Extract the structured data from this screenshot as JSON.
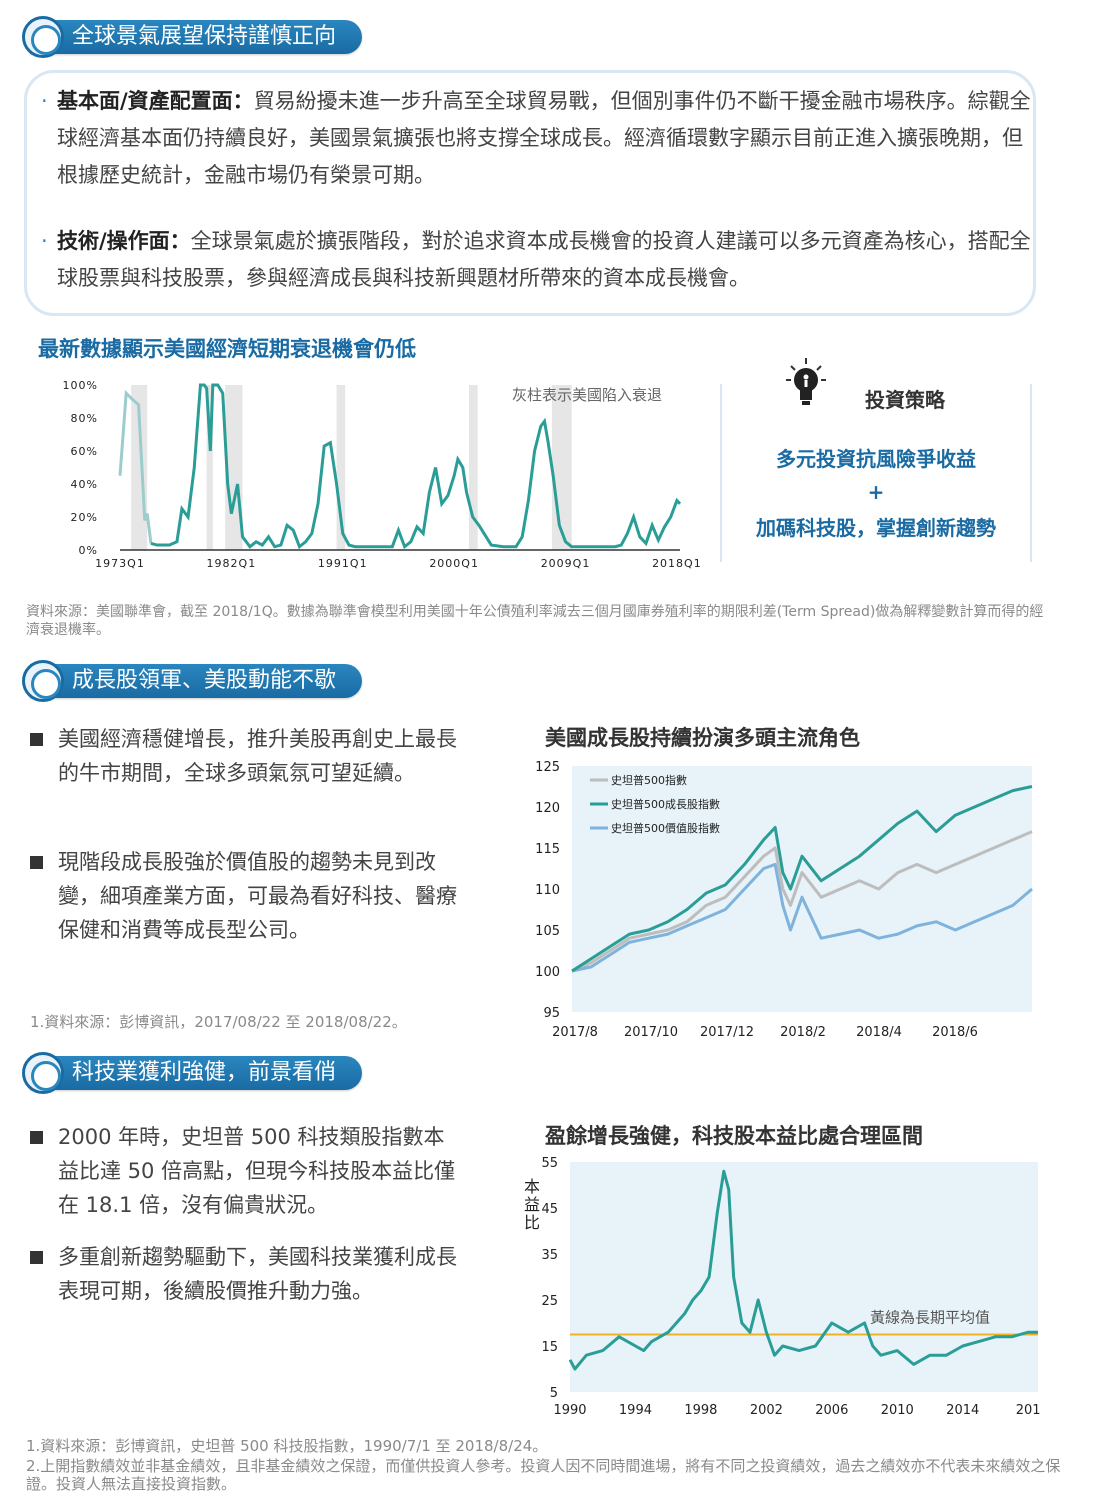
{
  "sections": {
    "s1": "全球景氣展望保持謹慎正向",
    "s2": "成長股領軍、美股動能不歇",
    "s3": "科技業獲利強健，前景看俏"
  },
  "intro": {
    "p1_label": "基本面/資產配置面：",
    "p1_text": "貿易紛擾未進一步升高至全球貿易戰，但個別事件仍不斷干擾金融市場秩序。綜觀全球經濟基本面仍持續良好，美國景氣擴張也將支撐全球成長。經濟循環數字顯示目前正進入擴張晚期，但根據歷史統計，金融市場仍有榮景可期。",
    "p2_label": "技術/操作面：",
    "p2_text": "全球景氣處於擴張階段，對於追求資本成長機會的投資人建議可以多元資產為核心，搭配全球股票與科技股票，參與經濟成長與科技新興題材所帶來的資本成長機會。"
  },
  "strategy": {
    "title": "投資策略",
    "line1": "多元投資抗風險爭收益",
    "plus": "+",
    "line2": "加碼科技股，掌握創新趨勢"
  },
  "sources": {
    "src1": "資料來源：美國聯準會，截至 2018/1Q。數據為聯準會模型利用美國十年公債殖利率減去三個月國庫券殖利率的期限利差(Term Spread)做為解釋變數計算而得的經濟衰退機率。",
    "src2": "1.資料來源：彭博資訊，2017/08/22 至 2018/08/22。",
    "src3_1": "1.資料來源：彭博資訊，史坦普 500 科技股指數，1990/7/1 至 2018/8/24。",
    "src3_2": "2.上開指數績效並非基金績效，且非基金績效之保證，而僅供投資人參考。投資人因不同時間進場，將有不同之投資績效，過去之績效亦不代表未來績效之保證。投資人無法直接投資指數。"
  },
  "bullets": {
    "b1": "美國經濟穩健增長，推升美股再創史上最長的牛市期間，全球多頭氣氛可望延續。",
    "b2": "現階段成長股強於價值股的趨勢未見到改變，細項產業方面，可最為看好科技、醫療保健和消費等成長型公司。",
    "b3": "2000 年時，史坦普 500 科技類股指數本益比達 50 倍高點，但現今科技股本益比僅在 18.1 倍，沒有偏貴狀況。",
    "b4": "多重創新趨勢驅動下，美國科技業獲利成長表現可期，後續股價推升動力強。"
  },
  "colors": {
    "brand_blue": "#1a6ba3",
    "teal": "#2a9d97",
    "light_teal": "#9ccccc",
    "grey": "#bdbdbd",
    "light_blue": "#7fb3dc",
    "avg_line": "#f0b323",
    "plot_bg": "#e7f3f8"
  },
  "chart_data": [
    {
      "type": "line",
      "title": "最新數據顯示美國經濟短期衰退機會仍低",
      "annotation": "灰柱表示美國陷入衰退",
      "x_ticks": [
        "1973Q1",
        "1982Q1",
        "1991Q1",
        "2000Q1",
        "2009Q1",
        "2018Q1"
      ],
      "y_ticks": [
        "0%",
        "20%",
        "40%",
        "60%",
        "80%",
        "100%"
      ],
      "ylim": [
        0,
        100
      ],
      "xlim": [
        1973,
        2018.25
      ],
      "recessions": [
        [
          1973.9,
          1975.2
        ],
        [
          1980.0,
          1980.5
        ],
        [
          1981.5,
          1982.9
        ],
        [
          1990.5,
          1991.2
        ],
        [
          2001.2,
          2001.9
        ],
        [
          2007.9,
          2009.5
        ]
      ],
      "x": [
        1973.0,
        1973.5,
        1973.9,
        1974.5,
        1975.0,
        1975.2,
        1975.5,
        1976.0,
        1977.0,
        1977.6,
        1978.0,
        1978.5,
        1979.0,
        1979.5,
        1979.8,
        1980.0,
        1980.3,
        1980.5,
        1980.9,
        1981.3,
        1981.7,
        1982.0,
        1982.5,
        1982.9,
        1983.5,
        1984.0,
        1984.5,
        1985.0,
        1985.5,
        1986.0,
        1986.5,
        1987.0,
        1987.5,
        1988.0,
        1988.5,
        1989.0,
        1989.5,
        1990.0,
        1990.5,
        1991.0,
        1991.5,
        1992.0,
        1993.0,
        1994.0,
        1995.0,
        1995.5,
        1996.0,
        1996.5,
        1997.0,
        1997.5,
        1998.0,
        1998.5,
        1999.0,
        1999.5,
        2000.0,
        2000.3,
        2000.7,
        2001.0,
        2001.5,
        2002.0,
        2003.0,
        2004.0,
        2005.0,
        2005.5,
        2006.0,
        2006.5,
        2007.0,
        2007.3,
        2007.6,
        2008.0,
        2008.5,
        2009.0,
        2009.5,
        2010.0,
        2011.0,
        2012.0,
        2013.0,
        2013.5,
        2014.0,
        2014.5,
        2015.0,
        2015.5,
        2016.0,
        2016.5,
        2017.0,
        2017.5,
        2018.0,
        2018.25
      ],
      "values": [
        45,
        95,
        92,
        88,
        18,
        22,
        4,
        3,
        3,
        5,
        25,
        20,
        50,
        100,
        100,
        98,
        60,
        100,
        100,
        95,
        40,
        22,
        40,
        8,
        2,
        5,
        3,
        8,
        2,
        3,
        15,
        12,
        2,
        5,
        10,
        28,
        63,
        65,
        40,
        10,
        3,
        2,
        2,
        2,
        2,
        12,
        2,
        5,
        14,
        10,
        35,
        50,
        28,
        33,
        45,
        55,
        50,
        35,
        20,
        15,
        3,
        2,
        2,
        8,
        30,
        60,
        75,
        78,
        65,
        45,
        15,
        5,
        2,
        2,
        2,
        2,
        2,
        3,
        10,
        20,
        8,
        4,
        15,
        6,
        14,
        20,
        30,
        28
      ],
      "series_color_note": "前段淺色、後段深色"
    },
    {
      "type": "line",
      "title": "美國成長股持續扮演多頭主流角色",
      "x_ticks": [
        "2017/8",
        "2017/10",
        "2017/12",
        "2018/2",
        "2018/4",
        "2018/6"
      ],
      "y_ticks": [
        95,
        100,
        105,
        110,
        115,
        120,
        125
      ],
      "ylim": [
        95,
        125
      ],
      "xlim": [
        0,
        12
      ],
      "legend": [
        "史坦普500指數",
        "史坦普500成長股指數",
        "史坦普500價值股指數"
      ],
      "legend_position": "top-left",
      "x": [
        0,
        0.5,
        1,
        1.5,
        2,
        2.5,
        3,
        3.5,
        4,
        4.5,
        5,
        5.3,
        5.5,
        5.7,
        6,
        6.5,
        7,
        7.5,
        8,
        8.5,
        9,
        9.5,
        10,
        10.5,
        11,
        11.5,
        12
      ],
      "series": [
        {
          "name": "史坦普500指數",
          "values": [
            100,
            101,
            102.5,
            104,
            104.5,
            105,
            106,
            108,
            109,
            111.5,
            114,
            115,
            110,
            108,
            112,
            109,
            110,
            111,
            110,
            112,
            113,
            112,
            113,
            114,
            115,
            116,
            117
          ]
        },
        {
          "name": "史坦普500成長股指數",
          "values": [
            100,
            101.5,
            103,
            104.5,
            105,
            106,
            107.5,
            109.5,
            110.5,
            113,
            116,
            117.5,
            112,
            110,
            114,
            111,
            112.5,
            114,
            116,
            118,
            119.5,
            117,
            119,
            120,
            121,
            122,
            122.5
          ]
        },
        {
          "name": "史坦普500價值股指數",
          "values": [
            100,
            100.5,
            102,
            103.5,
            104,
            104.5,
            105.5,
            106.5,
            107.5,
            110,
            112.5,
            113,
            108,
            105,
            109,
            104,
            104.5,
            105,
            104,
            104.5,
            105.5,
            106,
            105,
            106,
            107,
            108,
            110
          ]
        }
      ]
    },
    {
      "type": "line",
      "title": "盈餘增長強健，科技股本益比處合理區間",
      "ylabel": "本益比",
      "annotation": "黃線為長期平均值",
      "x_ticks": [
        "1990",
        "1994",
        "1998",
        "2002",
        "2006",
        "2010",
        "2014",
        "201"
      ],
      "y_ticks": [
        5,
        15,
        25,
        35,
        45,
        55
      ],
      "ylim": [
        5,
        55
      ],
      "xlim": [
        1990,
        2018.6
      ],
      "average": 17.5,
      "x": [
        1990,
        1990.3,
        1991,
        1992,
        1993,
        1994,
        1994.5,
        1995,
        1996,
        1996.5,
        1997,
        1997.5,
        1998,
        1998.5,
        1999,
        1999.4,
        1999.7,
        2000,
        2000.5,
        2001,
        2001.5,
        2002,
        2002.5,
        2003,
        2004,
        2005,
        2006,
        2007,
        2008,
        2008.5,
        2009,
        2010,
        2011,
        2012,
        2013,
        2014,
        2015,
        2016,
        2017,
        2018,
        2018.6
      ],
      "values": [
        12,
        10,
        13,
        14,
        17,
        15,
        14,
        16,
        18,
        20,
        22,
        25,
        27,
        30,
        44,
        53,
        49,
        30,
        20,
        18,
        25,
        18,
        13,
        15,
        14,
        15,
        20,
        18,
        20,
        15,
        13,
        14,
        11,
        13,
        13,
        15,
        16,
        17,
        17,
        18,
        18
      ]
    }
  ],
  "logo_text": "2017/08/22 至 2018/08/22 faded watermark"
}
